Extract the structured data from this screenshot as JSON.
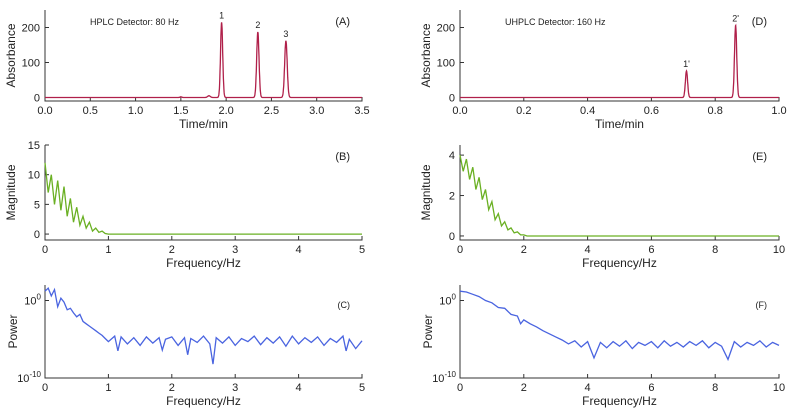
{
  "chart_data": [
    {
      "panel": "(A)",
      "type": "line",
      "annotation": "HPLC Detector: 80 Hz",
      "xlabel": "Time/min",
      "ylabel": "Absorbance",
      "xlim": [
        0,
        3.5
      ],
      "ylim": [
        -10,
        250
      ],
      "xticks": [
        "0.0",
        "0.5",
        "1.0",
        "1.5",
        "2.0",
        "2.5",
        "3.0",
        "3.5"
      ],
      "yticks": [
        "0",
        "100",
        "200"
      ],
      "ytick_values": [
        0,
        100,
        200
      ],
      "color": "#b0204a",
      "peaks": [
        {
          "label": "",
          "time": 1.5,
          "height": 2,
          "sigma": 0.01
        },
        {
          "label": "",
          "time": 1.81,
          "height": 5,
          "sigma": 0.015
        },
        {
          "label": "1",
          "time": 1.95,
          "height": 215,
          "sigma": 0.012
        },
        {
          "label": "2",
          "time": 2.35,
          "height": 187,
          "sigma": 0.013
        },
        {
          "label": "3",
          "time": 2.66,
          "height": 162,
          "sigma": 0.014
        }
      ]
    },
    {
      "panel": "(B)",
      "type": "line",
      "xlabel": "Frequency/Hz",
      "ylabel": "Magnitude",
      "xlim": [
        0,
        5
      ],
      "ylim": [
        -1,
        15
      ],
      "xticks": [
        "0",
        "1",
        "2",
        "3",
        "4",
        "5"
      ],
      "yticks": [
        "0",
        "5",
        "10",
        "15"
      ],
      "ytick_values": [
        0,
        5,
        10,
        15
      ],
      "color": "#6ab023",
      "x": [
        0,
        0.05,
        0.1,
        0.15,
        0.2,
        0.25,
        0.3,
        0.35,
        0.4,
        0.45,
        0.5,
        0.55,
        0.6,
        0.65,
        0.7,
        0.75,
        0.8,
        0.85,
        0.9,
        0.95,
        1.0,
        1.05,
        5
      ],
      "y": [
        12,
        7,
        10,
        5,
        9,
        4,
        8,
        3,
        6,
        2,
        4.5,
        1.5,
        3,
        1,
        2,
        0.5,
        1,
        0.3,
        0.5,
        0.1,
        0,
        0,
        0
      ]
    },
    {
      "panel": "(C)",
      "type": "line",
      "xlabel": "Frequency/Hz",
      "ylabel": "Power",
      "yscale": "log",
      "xlim": [
        0,
        5
      ],
      "ylim_log10": [
        -10,
        2
      ],
      "xticks": [
        "0",
        "1",
        "2",
        "3",
        "4",
        "5"
      ],
      "yticks": [
        "10^0",
        "10^-10"
      ],
      "ytick_values": [
        0,
        -10
      ],
      "color": "#4a64e0",
      "x": [
        0,
        0.05,
        0.1,
        0.15,
        0.2,
        0.25,
        0.3,
        0.35,
        0.4,
        0.45,
        0.5,
        0.55,
        0.6,
        0.65,
        0.7,
        0.75,
        0.8,
        0.85,
        0.9,
        0.95,
        1.0,
        1.1,
        1.15,
        1.2,
        1.3,
        1.4,
        1.5,
        1.6,
        1.7,
        1.8,
        1.85,
        1.9,
        2.0,
        2.1,
        2.2,
        2.25,
        2.3,
        2.4,
        2.5,
        2.6,
        2.65,
        2.7,
        2.8,
        2.9,
        3.0,
        3.1,
        3.2,
        3.3,
        3.4,
        3.5,
        3.6,
        3.7,
        3.8,
        3.9,
        4.0,
        4.1,
        4.2,
        4.3,
        4.4,
        4.5,
        4.6,
        4.7,
        4.75,
        4.8,
        4.9,
        5.0
      ],
      "y": [
        1.2,
        1.6,
        0.6,
        1.4,
        -0.8,
        0.3,
        -0.2,
        -1.2,
        -1.0,
        -1.6,
        -2.1,
        -1.8,
        -2.7,
        -3.0,
        -3.3,
        -3.6,
        -3.9,
        -4.2,
        -4.5,
        -4.9,
        -5.3,
        -4.6,
        -6.5,
        -4.7,
        -5.6,
        -4.8,
        -5.8,
        -4.7,
        -5.5,
        -4.8,
        -6.4,
        -5.0,
        -4.7,
        -5.8,
        -4.8,
        -7.0,
        -4.9,
        -5.4,
        -4.6,
        -5.6,
        -8.2,
        -4.8,
        -5.5,
        -4.7,
        -5.8,
        -4.9,
        -5.3,
        -4.6,
        -5.7,
        -4.8,
        -5.5,
        -4.7,
        -5.9,
        -4.6,
        -5.6,
        -4.8,
        -5.4,
        -4.7,
        -5.8,
        -4.9,
        -5.4,
        -4.6,
        -6.5,
        -5.0,
        -6.2,
        -5.2
      ]
    },
    {
      "panel": "(D)",
      "type": "line",
      "annotation": "UHPLC Detector: 160 Hz",
      "xlabel": "Time/min",
      "ylabel": "Absorbance",
      "xlim": [
        0,
        1.0
      ],
      "ylim": [
        -10,
        250
      ],
      "xticks": [
        "0.0",
        "0.2",
        "0.4",
        "0.6",
        "0.8",
        "1.0"
      ],
      "yticks": [
        "0",
        "100",
        "200"
      ],
      "ytick_values": [
        0,
        100,
        200
      ],
      "color": "#b0204a",
      "peaks": [
        {
          "label": "1'",
          "time": 0.71,
          "height": 76,
          "sigma": 0.0035
        },
        {
          "label": "2'",
          "time": 0.864,
          "height": 206,
          "sigma": 0.0035
        }
      ]
    },
    {
      "panel": "(E)",
      "type": "line",
      "xlabel": "Frequency/Hz",
      "ylabel": "Magnitude",
      "xlim": [
        0,
        10
      ],
      "ylim": [
        -0.2,
        4.5
      ],
      "xticks": [
        "0",
        "2",
        "4",
        "6",
        "8",
        "10"
      ],
      "yticks": [
        "0",
        "2",
        "4"
      ],
      "ytick_values": [
        0,
        2,
        4
      ],
      "color": "#6ab023",
      "x": [
        0,
        0.1,
        0.2,
        0.3,
        0.4,
        0.5,
        0.6,
        0.7,
        0.8,
        0.9,
        1.0,
        1.1,
        1.2,
        1.3,
        1.4,
        1.5,
        1.6,
        1.7,
        1.8,
        1.9,
        2.0,
        2.1,
        2.2,
        10
      ],
      "y": [
        4,
        3.2,
        3.8,
        2.8,
        3.4,
        2.3,
        2.9,
        1.8,
        2.3,
        1.3,
        1.7,
        0.8,
        1.1,
        0.5,
        0.7,
        0.3,
        0.4,
        0.15,
        0.2,
        0.05,
        0.05,
        0,
        0,
        0
      ]
    },
    {
      "panel": "(F)",
      "type": "line",
      "xlabel": "Frequency/Hz",
      "ylabel": "Power",
      "yscale": "log",
      "xlim": [
        0,
        10
      ],
      "ylim_log10": [
        -10,
        2
      ],
      "xticks": [
        "0",
        "2",
        "4",
        "6",
        "8",
        "10"
      ],
      "yticks": [
        "10^0",
        "10^-10"
      ],
      "ytick_values": [
        0,
        -10
      ],
      "color": "#4a64e0",
      "x": [
        0,
        0.2,
        0.4,
        0.6,
        0.8,
        1.0,
        1.2,
        1.4,
        1.6,
        1.8,
        1.9,
        2.0,
        2.2,
        2.4,
        2.6,
        2.8,
        3.0,
        3.2,
        3.4,
        3.6,
        3.8,
        4.0,
        4.2,
        4.4,
        4.6,
        4.8,
        5.0,
        5.2,
        5.4,
        5.6,
        5.8,
        6.0,
        6.2,
        6.4,
        6.6,
        6.8,
        7.0,
        7.2,
        7.4,
        7.6,
        7.8,
        8.0,
        8.2,
        8.4,
        8.6,
        8.8,
        9.0,
        9.2,
        9.4,
        9.6,
        9.8,
        10.0
      ],
      "y": [
        1.2,
        1.1,
        0.8,
        0.5,
        0.0,
        -0.3,
        -0.9,
        -1.0,
        -1.8,
        -2.0,
        -3.0,
        -2.5,
        -3.0,
        -3.4,
        -3.9,
        -4.3,
        -4.7,
        -5.1,
        -5.6,
        -5.2,
        -6.0,
        -5.3,
        -7.4,
        -5.4,
        -6.1,
        -5.3,
        -5.9,
        -5.2,
        -6.2,
        -5.4,
        -5.8,
        -5.3,
        -6.1,
        -5.2,
        -5.9,
        -5.4,
        -6.0,
        -5.3,
        -5.8,
        -5.2,
        -6.1,
        -5.4,
        -5.9,
        -7.6,
        -5.3,
        -6.0,
        -5.4,
        -5.8,
        -5.2,
        -6.0,
        -5.4,
        -5.8
      ]
    }
  ]
}
